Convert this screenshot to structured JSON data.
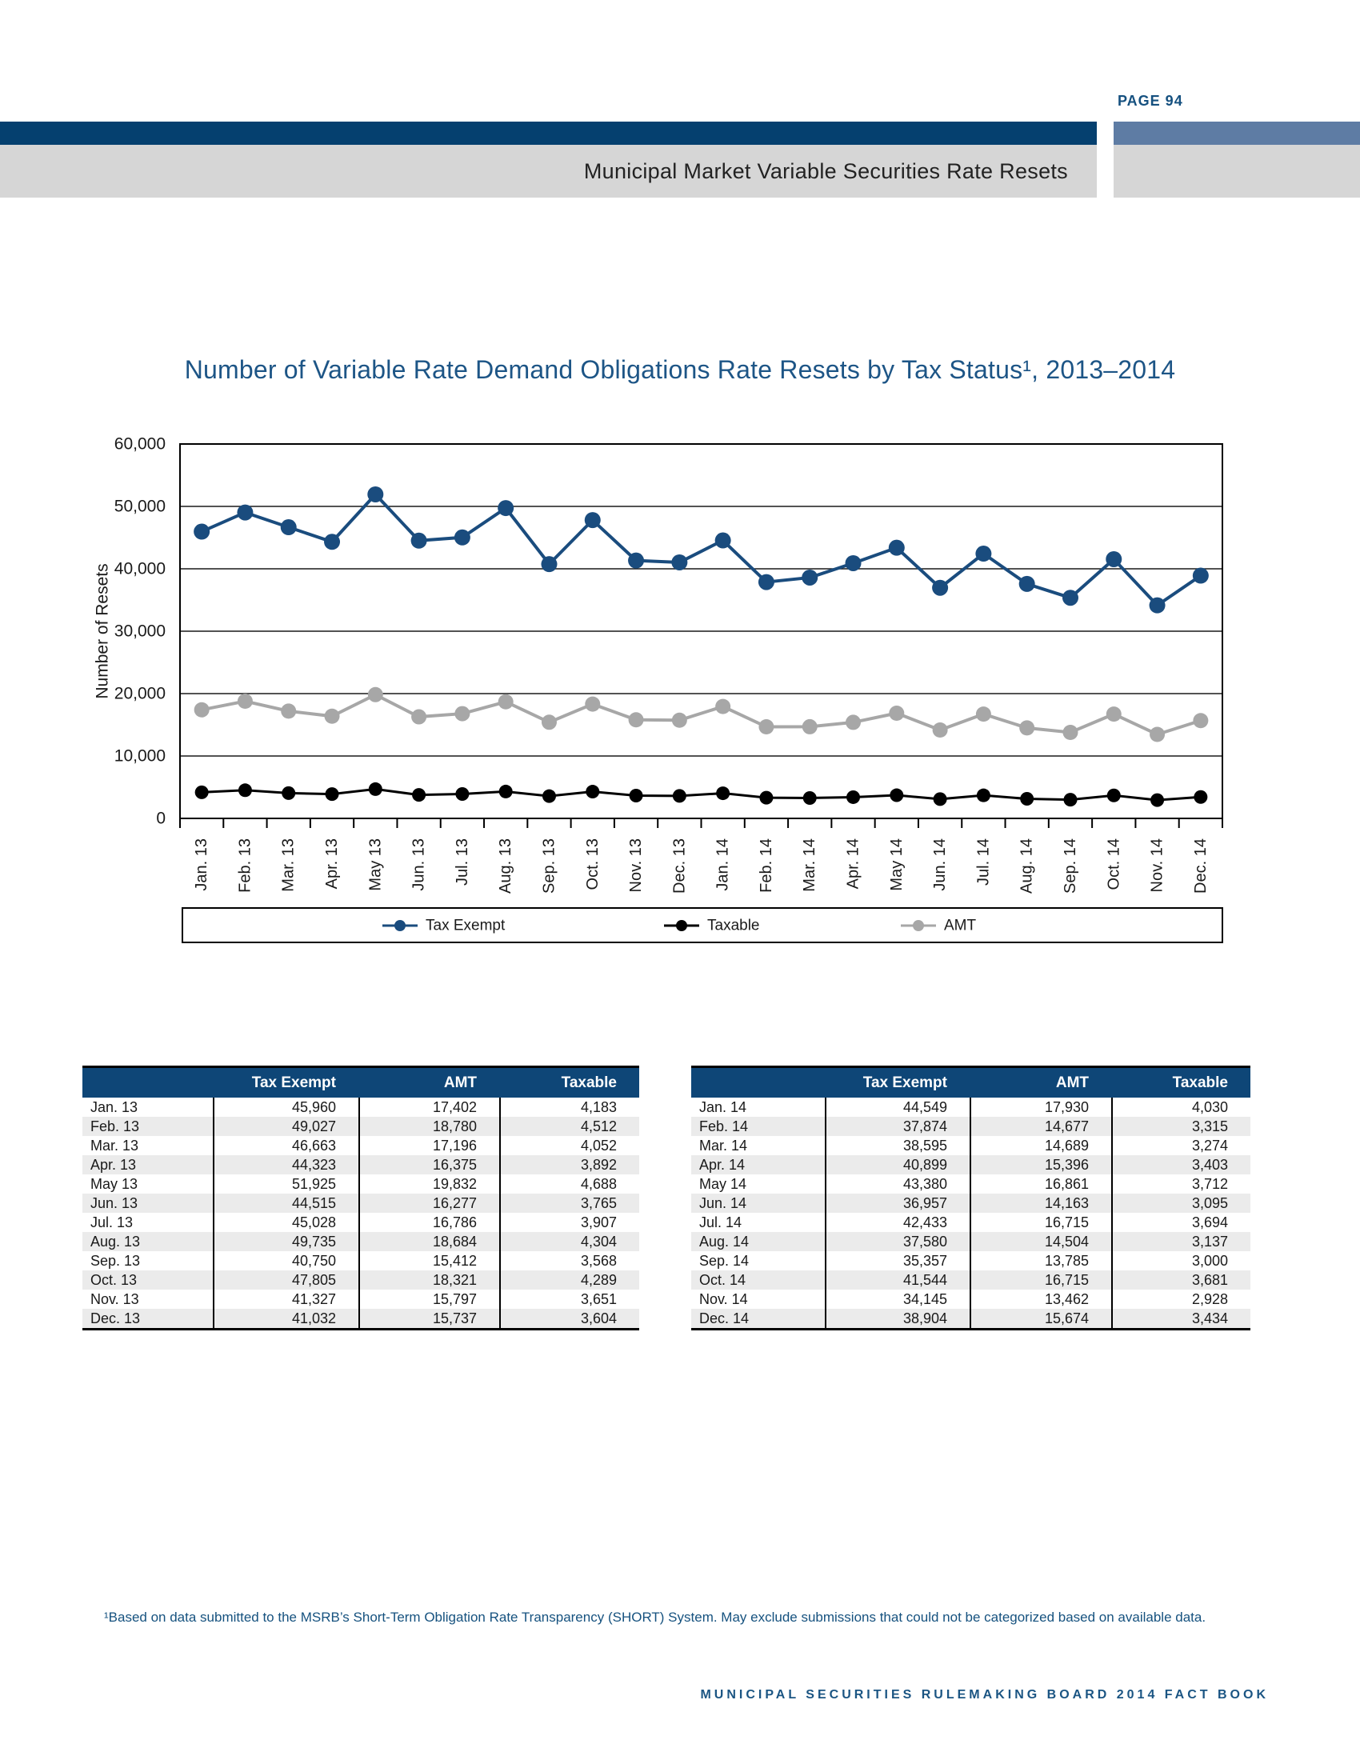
{
  "page": {
    "page_label": "PAGE 94",
    "band_title": "Municipal Market Variable Securities Rate Resets",
    "footnote": "¹Based on data submitted to the MSRB’s Short-Term Obligation Rate Transparency (SHORT) System. May exclude submissions that could not be categorized based on available data.",
    "footer": "MUNICIPAL SECURITIES RULEMAKING BOARD 2014 FACT BOOK"
  },
  "colors": {
    "navy_band": "#05406F",
    "steel_accent": "#5E7CA4",
    "gray_band": "#D6D6D6",
    "table_header": "#0E4677",
    "title_blue": "#1D5586",
    "tax_exempt": "#1A4C7E",
    "taxable": "#000000",
    "amt": "#A7A7A7"
  },
  "chart_data": {
    "type": "line",
    "title": "Number of Variable Rate Demand Obligations Rate Resets by Tax Status¹, 2013–2014",
    "xlabel": "",
    "ylabel": "Number of Resets",
    "ylim": [
      0,
      60000
    ],
    "ytick_interval": 10000,
    "yticks": [
      "0",
      "10,000",
      "20,000",
      "30,000",
      "40,000",
      "50,000",
      "60,000"
    ],
    "grid": true,
    "legend_position": "bottom",
    "categories": [
      "Jan. 13",
      "Feb. 13",
      "Mar. 13",
      "Apr. 13",
      "May 13",
      "Jun. 13",
      "Jul. 13",
      "Aug. 13",
      "Sep. 13",
      "Oct. 13",
      "Nov. 13",
      "Dec. 13",
      "Jan. 14",
      "Feb. 14",
      "Mar. 14",
      "Apr. 14",
      "May 14",
      "Jun. 14",
      "Jul. 14",
      "Aug. 14",
      "Sep. 14",
      "Oct. 14",
      "Nov. 14",
      "Dec. 14"
    ],
    "series": [
      {
        "name": "Tax Exempt",
        "color": "#1A4C7E",
        "marker_r": 10,
        "line_w": 4,
        "values": [
          45960,
          49027,
          46663,
          44323,
          51925,
          44515,
          45028,
          49735,
          40750,
          47805,
          41327,
          41032,
          44549,
          37874,
          38595,
          40899,
          43380,
          36957,
          42433,
          37580,
          35357,
          41544,
          34145,
          38904
        ]
      },
      {
        "name": "Taxable",
        "color": "#000000",
        "marker_r": 8.5,
        "line_w": 3,
        "values": [
          4183,
          4512,
          4052,
          3892,
          4688,
          3765,
          3907,
          4304,
          3568,
          4289,
          3651,
          3604,
          4030,
          3315,
          3274,
          3403,
          3712,
          3095,
          3694,
          3137,
          3000,
          3681,
          2928,
          3434
        ]
      },
      {
        "name": "AMT",
        "color": "#A7A7A7",
        "marker_r": 9.5,
        "line_w": 4,
        "values": [
          17402,
          18780,
          17196,
          16375,
          19832,
          16277,
          16786,
          18684,
          15412,
          18321,
          15797,
          15737,
          17930,
          14677,
          14689,
          15396,
          16861,
          14163,
          16715,
          14504,
          13785,
          16715,
          13462,
          15674
        ]
      }
    ]
  },
  "tables": [
    {
      "columns": [
        "",
        "Tax Exempt",
        "AMT",
        "Taxable"
      ],
      "rows": [
        [
          "Jan. 13",
          "45,960",
          "17,402",
          "4,183"
        ],
        [
          "Feb. 13",
          "49,027",
          "18,780",
          "4,512"
        ],
        [
          "Mar. 13",
          "46,663",
          "17,196",
          "4,052"
        ],
        [
          "Apr. 13",
          "44,323",
          "16,375",
          "3,892"
        ],
        [
          "May 13",
          "51,925",
          "19,832",
          "4,688"
        ],
        [
          "Jun. 13",
          "44,515",
          "16,277",
          "3,765"
        ],
        [
          "Jul. 13",
          "45,028",
          "16,786",
          "3,907"
        ],
        [
          "Aug. 13",
          "49,735",
          "18,684",
          "4,304"
        ],
        [
          "Sep. 13",
          "40,750",
          "15,412",
          "3,568"
        ],
        [
          "Oct. 13",
          "47,805",
          "18,321",
          "4,289"
        ],
        [
          "Nov. 13",
          "41,327",
          "15,797",
          "3,651"
        ],
        [
          "Dec. 13",
          "41,032",
          "15,737",
          "3,604"
        ]
      ]
    },
    {
      "columns": [
        "",
        "Tax Exempt",
        "AMT",
        "Taxable"
      ],
      "rows": [
        [
          "Jan. 14",
          "44,549",
          "17,930",
          "4,030"
        ],
        [
          "Feb. 14",
          "37,874",
          "14,677",
          "3,315"
        ],
        [
          "Mar. 14",
          "38,595",
          "14,689",
          "3,274"
        ],
        [
          "Apr. 14",
          "40,899",
          "15,396",
          "3,403"
        ],
        [
          "May 14",
          "43,380",
          "16,861",
          "3,712"
        ],
        [
          "Jun. 14",
          "36,957",
          "14,163",
          "3,095"
        ],
        [
          "Jul. 14",
          "42,433",
          "16,715",
          "3,694"
        ],
        [
          "Aug. 14",
          "37,580",
          "14,504",
          "3,137"
        ],
        [
          "Sep. 14",
          "35,357",
          "13,785",
          "3,000"
        ],
        [
          "Oct. 14",
          "41,544",
          "16,715",
          "3,681"
        ],
        [
          "Nov. 14",
          "34,145",
          "13,462",
          "2,928"
        ],
        [
          "Dec. 14",
          "38,904",
          "15,674",
          "3,434"
        ]
      ]
    }
  ]
}
